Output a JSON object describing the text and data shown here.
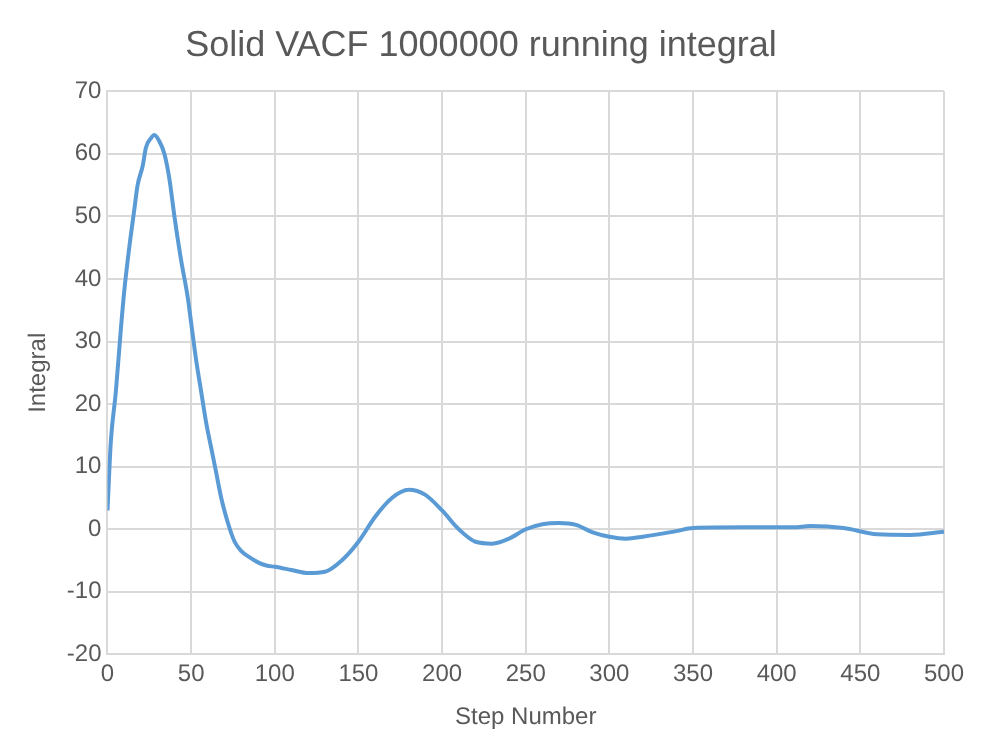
{
  "chart_data": {
    "type": "line",
    "title": "Solid VACF 1000000 running integral",
    "xlabel": "Step Number",
    "ylabel": "Integral",
    "series": [
      {
        "color": "#5b9bd5",
        "x": [
          0,
          2,
          5,
          8,
          10,
          13,
          16,
          18,
          21,
          23,
          26,
          28,
          31,
          34,
          37,
          40,
          44,
          48,
          50,
          53,
          56,
          59,
          62,
          65,
          68,
          72,
          76,
          80,
          85,
          90,
          95,
          100,
          110,
          120,
          130,
          140,
          150,
          160,
          170,
          180,
          190,
          200,
          210,
          220,
          230,
          240,
          250,
          260,
          270,
          280,
          290,
          300,
          310,
          320,
          340,
          350,
          380,
          410,
          420,
          440,
          460,
          480,
          500
        ],
        "values": [
          3,
          14,
          22,
          32,
          38,
          45,
          51,
          55,
          58,
          61,
          62.5,
          63,
          62,
          60,
          56,
          50,
          43,
          37,
          33,
          27,
          22,
          17,
          13,
          9,
          5,
          1,
          -2,
          -3.5,
          -4.5,
          -5.3,
          -5.8,
          -6,
          -6.5,
          -7,
          -6.8,
          -5,
          -2,
          2,
          5,
          6.3,
          5.5,
          3,
          0,
          -2,
          -2.3,
          -1.5,
          0,
          0.8,
          1,
          0.7,
          -0.5,
          -1.2,
          -1.5,
          -1.2,
          -0.3,
          0.2,
          0.3,
          0.3,
          0.5,
          0.2,
          -0.8,
          -0.9,
          -0.4
        ]
      }
    ],
    "xlim": [
      0,
      500
    ],
    "xticks": [
      0,
      50,
      100,
      150,
      200,
      250,
      300,
      350,
      400,
      450,
      500
    ],
    "ylim": [
      -20,
      70
    ],
    "yticks": [
      -20,
      -10,
      0,
      10,
      20,
      30,
      40,
      50,
      60,
      70
    ],
    "grid": true,
    "legend": false,
    "marker": "none",
    "line_style": "solid"
  }
}
